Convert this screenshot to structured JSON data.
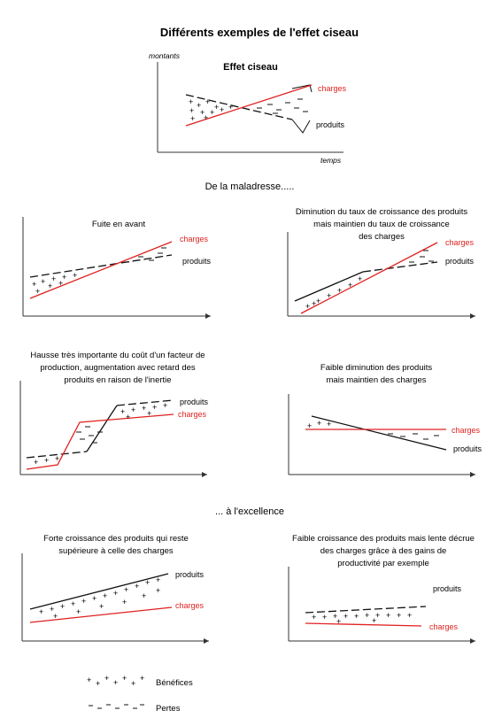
{
  "title": "Différents exemples de l'effet ciseau",
  "top": {
    "y_label": "montants",
    "x_label": "temps",
    "caption": "Effet ciseau",
    "charges": "charges",
    "produits": "produits"
  },
  "section_bad": "De la maladresse.....",
  "section_good": "... à l'excellence",
  "panels": [
    {
      "caption": [
        "Fuite en avant"
      ],
      "charges": "charges",
      "produits": "produits"
    },
    {
      "caption": [
        "Diminution du taux de croissance des produits",
        "mais maintien du taux de croissance",
        "des charges"
      ],
      "charges": "charges",
      "produits": "produits"
    },
    {
      "caption": [
        "Hausse très importante du coût d'un facteur de",
        "production, augmentation avec retard des",
        "produits en raison de l'inertie"
      ],
      "charges": "charges",
      "produits": "produits"
    },
    {
      "caption": [
        "Faible diminution des produits",
        "mais maintien des charges"
      ],
      "charges": "charges",
      "produits": "produits"
    },
    {
      "caption": [
        "Forte croissance des produits qui reste",
        "supérieure à celle des charges"
      ],
      "charges": "charges",
      "produits": "produits"
    },
    {
      "caption": [
        "Faible croissance des produits mais lente décrue",
        "des charges grâce à des gains de",
        "productivité par exemple"
      ],
      "charges": "charges",
      "produits": "produits"
    }
  ],
  "legend": {
    "benefices": "Bénéfices",
    "pertes": "Pertes"
  },
  "colors": {
    "charges": "#e02020",
    "produits": "#111111",
    "axis": "#333333"
  }
}
